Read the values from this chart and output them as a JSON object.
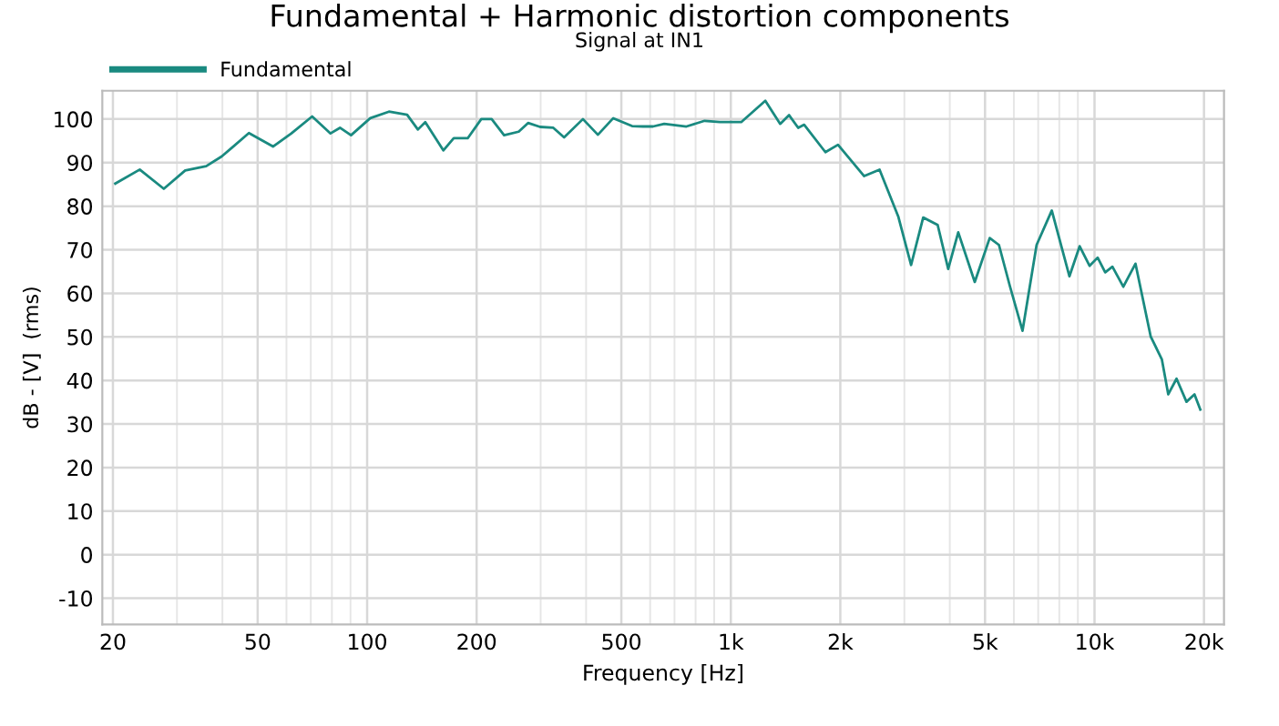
{
  "chart_data": {
    "type": "line",
    "title": "Fundamental + Harmonic distortion components",
    "subtitle": "Signal at IN1",
    "xlabel": "Frequency [Hz]",
    "ylabel": "dB - [V]  (rms)",
    "log": "x",
    "grid": true,
    "legend": "top left",
    "line_style": "solid",
    "marker": "none",
    "xlim": [
      18.7,
      22700
    ],
    "ylim": [
      -16,
      106.5
    ],
    "xticks": [
      20,
      50,
      100,
      200,
      500,
      {
        "value": 1000,
        "label": "1k"
      },
      {
        "value": 2000,
        "label": "2k"
      },
      {
        "value": 5000,
        "label": "5k"
      },
      {
        "value": 10000,
        "label": "10k"
      },
      {
        "value": 20000,
        "label": "20k"
      }
    ],
    "yticks": [
      -10,
      0,
      10,
      20,
      30,
      40,
      50,
      60,
      70,
      80,
      90,
      100
    ],
    "series": [
      {
        "name": "Fundamental",
        "color": "#1a8a80",
        "x": [
          20.3,
          23.7,
          27.6,
          31.6,
          36.1,
          39.8,
          47.3,
          55.1,
          61.9,
          70.6,
          79.3,
          84.2,
          90.3,
          102,
          114.8,
          128.8,
          137.9,
          144.5,
          162,
          173,
          189,
          206,
          220,
          238,
          261,
          277,
          299,
          325,
          348,
          392,
          431,
          475,
          535,
          573,
          611,
          656,
          755,
          847,
          933,
          1068,
          1244,
          1367,
          1446,
          1532,
          1591,
          1820,
          1971,
          2326,
          2564,
          2885,
          3131,
          3380,
          3704,
          3960,
          4220,
          4685,
          5150,
          5460,
          5850,
          6340,
          6930,
          7630,
          8530,
          9100,
          9690,
          10200,
          10700,
          11200,
          12000,
          12960,
          14270,
          15320,
          15950,
          16810,
          17900,
          18830,
          19540
        ],
        "values": [
          85.2,
          88.4,
          84.0,
          88.2,
          89.2,
          91.4,
          96.8,
          93.7,
          96.7,
          100.6,
          96.7,
          98.0,
          96.3,
          100.2,
          101.7,
          101.0,
          97.6,
          99.3,
          92.8,
          95.6,
          95.6,
          100.0,
          100.0,
          96.3,
          97.1,
          99.1,
          98.2,
          98.0,
          95.8,
          100.0,
          96.4,
          100.2,
          98.4,
          98.3,
          98.3,
          98.9,
          98.3,
          99.6,
          99.3,
          99.3,
          104.2,
          98.9,
          100.9,
          98.0,
          98.7,
          92.4,
          94.1,
          86.9,
          88.4,
          77.7,
          66.5,
          77.4,
          75.7,
          65.6,
          74.0,
          62.6,
          72.7,
          71.1,
          61.7,
          51.4,
          71.1,
          79.0,
          63.9,
          70.8,
          66.3,
          68.2,
          64.8,
          66.1,
          61.5,
          66.8,
          50.1,
          44.8,
          36.8,
          40.4,
          35.1,
          36.8,
          33.3
        ]
      }
    ]
  }
}
